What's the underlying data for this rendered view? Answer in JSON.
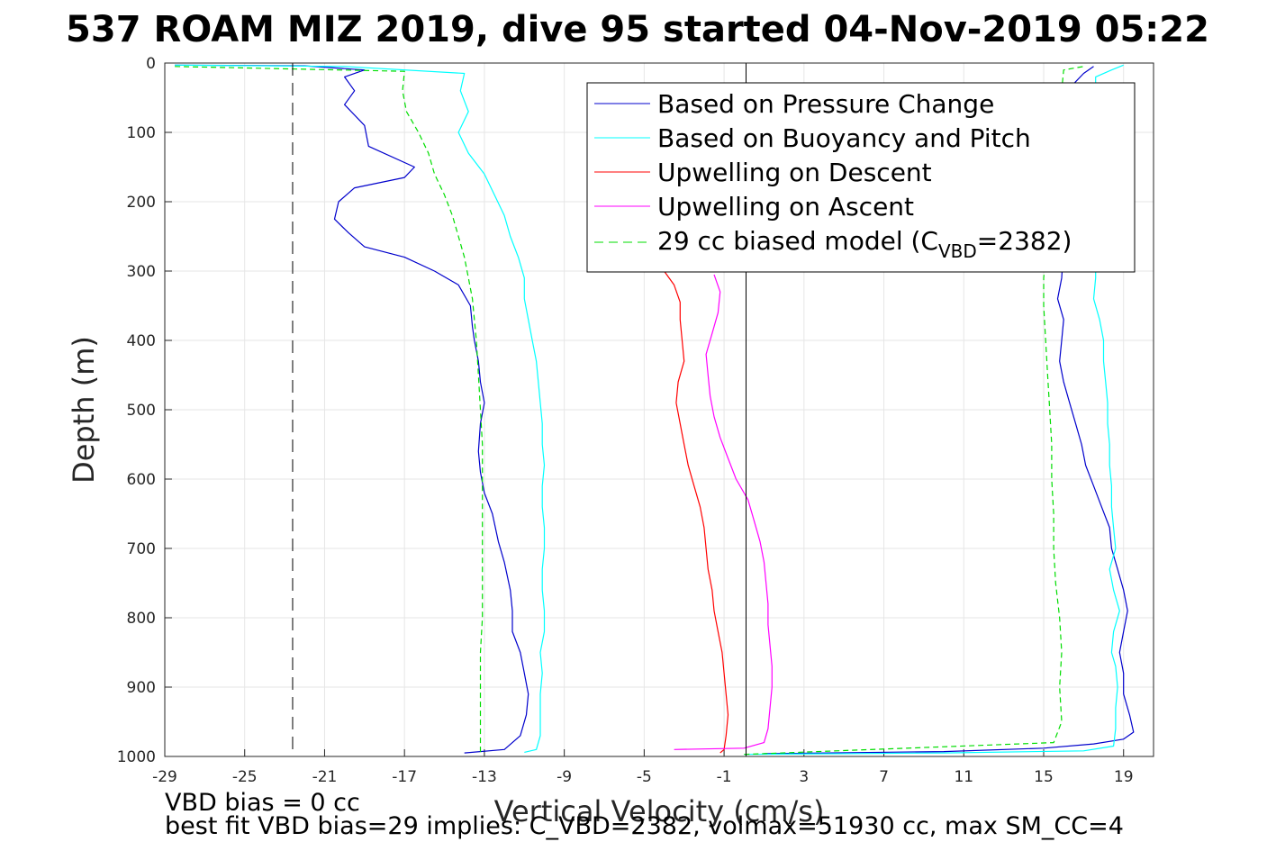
{
  "chart_data": {
    "type": "line",
    "title": "537 ROAM MIZ 2019, dive 95 started 04-Nov-2019 05:22",
    "xlabel": "Vertical Velocity (cm/s)",
    "ylabel": "Depth (m)",
    "xlim": [
      -29,
      20.5
    ],
    "ylim": [
      0,
      1000
    ],
    "y_reversed": true,
    "grid": true,
    "legend_position": "top-right",
    "x_ticks": [
      -29,
      -25,
      -21,
      -17,
      -13,
      -9,
      -5,
      -1,
      3,
      7,
      11,
      15,
      19
    ],
    "x_tick_labels": [
      "-29",
      "-25",
      "-21",
      "-17",
      "-13",
      "-9",
      "-5",
      "-1",
      "3",
      "7",
      "11",
      "15",
      "19"
    ],
    "y_ticks": [
      0,
      100,
      200,
      300,
      400,
      500,
      600,
      700,
      800,
      900,
      1000
    ],
    "y_tick_labels": [
      "0",
      "100",
      "200",
      "300",
      "400",
      "500",
      "600",
      "700",
      "800",
      "900",
      "1000"
    ],
    "legend": {
      "entries": [
        {
          "text": "Based on Pressure Change"
        },
        {
          "text": "Based on Buoyancy and Pitch"
        },
        {
          "text": "Upwelling on Descent"
        },
        {
          "text": "Upwelling on Ascent"
        },
        {
          "text_pre": "29 cc biased model (C",
          "text_sub": "VBD",
          "text_post": "=2382)"
        }
      ]
    },
    "reference_lines": [
      {
        "orientation": "vertical",
        "x": -22.6,
        "style": "dashed",
        "color": "#000000"
      },
      {
        "orientation": "vertical",
        "x": 0.1,
        "style": "solid",
        "color": "#000000"
      }
    ],
    "series": [
      {
        "name": "Based on Pressure Change",
        "color": "#0000cc",
        "style": "solid",
        "branch": "descent",
        "points": [
          [
            -28.5,
            3
          ],
          [
            -22,
            4
          ],
          [
            -19,
            10
          ],
          [
            -20,
            20
          ],
          [
            -19.5,
            40
          ],
          [
            -20,
            60
          ],
          [
            -19,
            90
          ],
          [
            -18.8,
            120
          ],
          [
            -16.5,
            150
          ],
          [
            -17,
            165
          ],
          [
            -19.5,
            180
          ],
          [
            -20.3,
            200
          ],
          [
            -20.5,
            225
          ],
          [
            -19.8,
            245
          ],
          [
            -19,
            265
          ],
          [
            -17,
            280
          ],
          [
            -15.5,
            300
          ],
          [
            -14.3,
            320
          ],
          [
            -13.7,
            350
          ],
          [
            -13.6,
            380
          ],
          [
            -13.5,
            400
          ],
          [
            -13.3,
            430
          ],
          [
            -13.2,
            460
          ],
          [
            -13,
            490
          ],
          [
            -13.2,
            520
          ],
          [
            -13.3,
            560
          ],
          [
            -13.2,
            590
          ],
          [
            -13,
            620
          ],
          [
            -12.6,
            650
          ],
          [
            -12.3,
            690
          ],
          [
            -12,
            720
          ],
          [
            -11.7,
            760
          ],
          [
            -11.6,
            790
          ],
          [
            -11.6,
            820
          ],
          [
            -11.2,
            850
          ],
          [
            -11,
            880
          ],
          [
            -10.8,
            910
          ],
          [
            -10.9,
            940
          ],
          [
            -11.2,
            970
          ],
          [
            -12,
            990
          ],
          [
            -14,
            995
          ]
        ]
      },
      {
        "name": "",
        "color": "#0000cc",
        "style": "solid",
        "branch": "ascent",
        "points": [
          [
            1,
            996
          ],
          [
            10,
            993
          ],
          [
            15,
            988
          ],
          [
            17.5,
            982
          ],
          [
            19,
            975
          ],
          [
            19.5,
            965
          ],
          [
            19.3,
            940
          ],
          [
            19,
            910
          ],
          [
            19,
            880
          ],
          [
            18.8,
            850
          ],
          [
            19,
            820
          ],
          [
            19.2,
            790
          ],
          [
            19,
            760
          ],
          [
            18.7,
            730
          ],
          [
            18.4,
            700
          ],
          [
            18.3,
            670
          ],
          [
            17.9,
            640
          ],
          [
            17.5,
            610
          ],
          [
            17.1,
            580
          ],
          [
            16.9,
            550
          ],
          [
            16.6,
            520
          ],
          [
            16.3,
            490
          ],
          [
            16,
            460
          ],
          [
            15.8,
            430
          ],
          [
            15.9,
            400
          ],
          [
            16,
            370
          ],
          [
            15.7,
            340
          ],
          [
            15.9,
            310
          ],
          [
            16.5,
            30
          ],
          [
            17,
            15
          ],
          [
            17.5,
            5
          ]
        ]
      },
      {
        "name": "Based on Buoyancy and Pitch",
        "color": "#00ffff",
        "style": "solid",
        "branch": "descent",
        "points": [
          [
            -28.5,
            3
          ],
          [
            -20,
            5
          ],
          [
            -14,
            15
          ],
          [
            -14.2,
            40
          ],
          [
            -13.8,
            70
          ],
          [
            -14.3,
            100
          ],
          [
            -13.8,
            130
          ],
          [
            -13,
            160
          ],
          [
            -12.5,
            190
          ],
          [
            -12,
            220
          ],
          [
            -11.7,
            250
          ],
          [
            -11.3,
            280
          ],
          [
            -11,
            310
          ],
          [
            -11,
            340
          ],
          [
            -10.8,
            370
          ],
          [
            -10.6,
            400
          ],
          [
            -10.4,
            430
          ],
          [
            -10.3,
            460
          ],
          [
            -10.2,
            490
          ],
          [
            -10.1,
            520
          ],
          [
            -10.1,
            550
          ],
          [
            -10,
            580
          ],
          [
            -10.1,
            610
          ],
          [
            -10.1,
            640
          ],
          [
            -10,
            670
          ],
          [
            -10,
            700
          ],
          [
            -10.1,
            730
          ],
          [
            -10.1,
            760
          ],
          [
            -10,
            790
          ],
          [
            -10,
            820
          ],
          [
            -10.2,
            850
          ],
          [
            -10.1,
            880
          ],
          [
            -10.2,
            910
          ],
          [
            -10.2,
            940
          ],
          [
            -10.2,
            970
          ],
          [
            -10.4,
            990
          ],
          [
            -11,
            994
          ]
        ]
      },
      {
        "name": "",
        "color": "#00ffff",
        "style": "solid",
        "branch": "ascent",
        "points": [
          [
            0,
            997
          ],
          [
            10,
            995
          ],
          [
            17,
            992
          ],
          [
            18.5,
            985
          ],
          [
            18.6,
            960
          ],
          [
            18.6,
            930
          ],
          [
            18.7,
            900
          ],
          [
            18.6,
            870
          ],
          [
            18.4,
            850
          ],
          [
            18.5,
            820
          ],
          [
            18.8,
            790
          ],
          [
            18.5,
            760
          ],
          [
            18.3,
            730
          ],
          [
            18.6,
            700
          ],
          [
            18.5,
            670
          ],
          [
            18.4,
            640
          ],
          [
            18.4,
            610
          ],
          [
            18.3,
            580
          ],
          [
            18.3,
            550
          ],
          [
            18.2,
            520
          ],
          [
            18.2,
            490
          ],
          [
            18.1,
            460
          ],
          [
            18,
            430
          ],
          [
            18,
            400
          ],
          [
            17.8,
            370
          ],
          [
            17.5,
            340
          ],
          [
            17.6,
            310
          ],
          [
            17.6,
            20
          ],
          [
            18.4,
            10
          ],
          [
            19,
            3
          ]
        ]
      },
      {
        "name": "Upwelling on Descent",
        "color": "#ff0000",
        "style": "solid",
        "branch": "descent",
        "points": [
          [
            -4,
            300
          ],
          [
            -3.5,
            320
          ],
          [
            -3.2,
            345
          ],
          [
            -3.2,
            370
          ],
          [
            -3.1,
            400
          ],
          [
            -3,
            430
          ],
          [
            -3.3,
            460
          ],
          [
            -3.4,
            490
          ],
          [
            -3.2,
            520
          ],
          [
            -3,
            550
          ],
          [
            -2.8,
            580
          ],
          [
            -2.5,
            610
          ],
          [
            -2.2,
            640
          ],
          [
            -2,
            670
          ],
          [
            -1.9,
            700
          ],
          [
            -1.8,
            730
          ],
          [
            -1.6,
            760
          ],
          [
            -1.5,
            790
          ],
          [
            -1.3,
            820
          ],
          [
            -1.1,
            850
          ],
          [
            -1,
            880
          ],
          [
            -0.9,
            910
          ],
          [
            -0.8,
            940
          ],
          [
            -0.9,
            970
          ],
          [
            -1,
            990
          ],
          [
            -1.2,
            995
          ]
        ]
      },
      {
        "name": "Upwelling on Ascent",
        "color": "#ff00ff",
        "style": "solid",
        "branch": "ascent",
        "points": [
          [
            -3.5,
            990
          ],
          [
            0,
            988
          ],
          [
            1,
            980
          ],
          [
            1.2,
            960
          ],
          [
            1.3,
            930
          ],
          [
            1.4,
            900
          ],
          [
            1.4,
            870
          ],
          [
            1.3,
            840
          ],
          [
            1.2,
            810
          ],
          [
            1.2,
            780
          ],
          [
            1.1,
            750
          ],
          [
            1,
            720
          ],
          [
            0.8,
            690
          ],
          [
            0.5,
            660
          ],
          [
            0.2,
            630
          ],
          [
            -0.4,
            600
          ],
          [
            -0.8,
            570
          ],
          [
            -1.2,
            540
          ],
          [
            -1.5,
            510
          ],
          [
            -1.7,
            480
          ],
          [
            -1.8,
            450
          ],
          [
            -1.9,
            420
          ],
          [
            -1.6,
            390
          ],
          [
            -1.3,
            360
          ],
          [
            -1.2,
            330
          ],
          [
            -1.5,
            305
          ]
        ]
      },
      {
        "name": "29 cc biased model (C_VBD=2382)",
        "color": "#00dd00",
        "style": "dashed",
        "branch": "descent",
        "points": [
          [
            -28.5,
            5
          ],
          [
            -17,
            12
          ],
          [
            -17.1,
            40
          ],
          [
            -16.9,
            70
          ],
          [
            -16.3,
            100
          ],
          [
            -15.8,
            130
          ],
          [
            -15.5,
            160
          ],
          [
            -15,
            190
          ],
          [
            -14.6,
            220
          ],
          [
            -14.3,
            250
          ],
          [
            -14,
            280
          ],
          [
            -13.8,
            310
          ],
          [
            -13.6,
            340
          ],
          [
            -13.5,
            370
          ],
          [
            -13.4,
            400
          ],
          [
            -13.3,
            450
          ],
          [
            -13.2,
            500
          ],
          [
            -13.1,
            550
          ],
          [
            -13.1,
            600
          ],
          [
            -13.1,
            650
          ],
          [
            -13.1,
            700
          ],
          [
            -13.1,
            750
          ],
          [
            -13.1,
            800
          ],
          [
            -13.2,
            850
          ],
          [
            -13.2,
            900
          ],
          [
            -13.2,
            950
          ],
          [
            -13.2,
            980
          ],
          [
            -13.2,
            995
          ]
        ]
      },
      {
        "name": "",
        "color": "#00dd00",
        "style": "dashed",
        "branch": "ascent",
        "points": [
          [
            0,
            997
          ],
          [
            15.5,
            980
          ],
          [
            15.9,
            950
          ],
          [
            15.8,
            900
          ],
          [
            15.9,
            850
          ],
          [
            15.8,
            800
          ],
          [
            15.6,
            750
          ],
          [
            15.5,
            700
          ],
          [
            15.5,
            650
          ],
          [
            15.4,
            600
          ],
          [
            15.4,
            550
          ],
          [
            15.3,
            500
          ],
          [
            15.2,
            450
          ],
          [
            15.1,
            400
          ],
          [
            15,
            350
          ],
          [
            15,
            310
          ],
          [
            16,
            10
          ],
          [
            17,
            5
          ]
        ]
      }
    ]
  },
  "notes": {
    "vbd_bias": "VBD bias = 0 cc",
    "best_fit": "best fit VBD bias=29 implies: C_VBD=2382, volmax=51930 cc, max SM_CC=4"
  }
}
